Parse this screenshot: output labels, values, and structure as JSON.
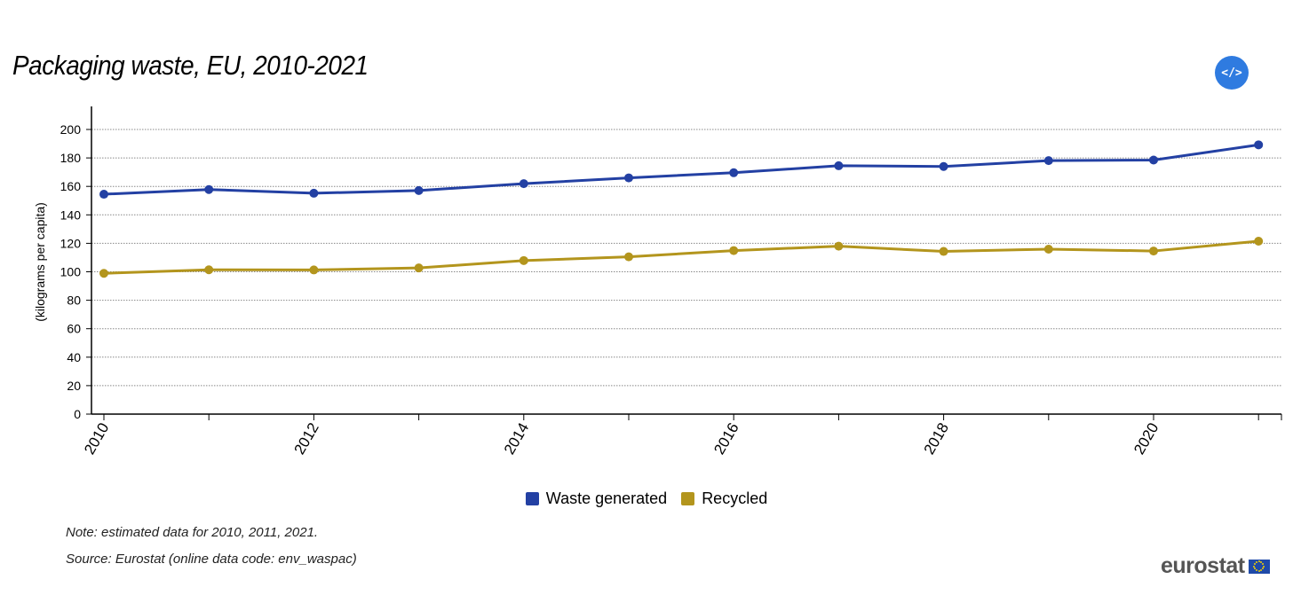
{
  "title": "Packaging waste, EU, 2010-2021",
  "embed_label": "</>",
  "notes": {
    "note": "Note: estimated data for 2010, 2011, 2021.",
    "source": "Source: Eurostat (online data code: env_waspac)"
  },
  "logo_text": "eurostat",
  "chart_data": {
    "type": "line",
    "title": "Packaging waste, EU, 2010-2021",
    "ylabel": "(kilograms per capita)",
    "xlabel": "",
    "x": [
      2010,
      2011,
      2012,
      2013,
      2014,
      2015,
      2016,
      2017,
      2018,
      2019,
      2020,
      2021
    ],
    "x_tick_labels": [
      "2010",
      "2012",
      "2014",
      "2016",
      "2018",
      "2020"
    ],
    "ylim": [
      0,
      210
    ],
    "y_ticks": [
      0,
      20,
      40,
      60,
      80,
      100,
      120,
      140,
      160,
      180,
      200
    ],
    "grid": true,
    "legend_position": "bottom-center",
    "series": [
      {
        "name": "Waste generated",
        "color": "#2340a3",
        "values": [
          154.5,
          157.8,
          155.2,
          157.1,
          161.9,
          166.0,
          169.6,
          174.5,
          174.0,
          178.1,
          178.5,
          189.2
        ]
      },
      {
        "name": "Recycled",
        "color": "#b3951d",
        "values": [
          98.9,
          101.4,
          101.3,
          102.7,
          107.9,
          110.5,
          114.9,
          118.0,
          114.3,
          115.9,
          114.6,
          121.5
        ]
      }
    ]
  }
}
